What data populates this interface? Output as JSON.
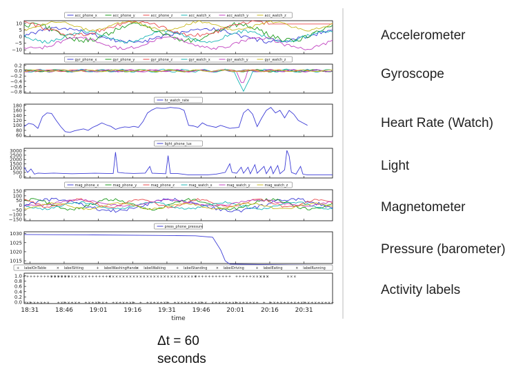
{
  "side_labels": [
    "Accelerometer",
    "Gyroscope",
    "Heart Rate (Watch)",
    "Light",
    "Magnetometer",
    "Pressure (barometer)",
    "Activity labels"
  ],
  "caption": {
    "line1": "Δt = 60",
    "line2": "seconds"
  },
  "chart_data": [
    {
      "type": "line",
      "panel": "accelerometer",
      "yticks": [
        "10",
        "5",
        "0",
        "−5",
        "−10"
      ],
      "ylim": [
        -13,
        12
      ],
      "series": [
        {
          "name": "acc_phone_x",
          "color": "#3b3bd6",
          "level": 1,
          "amp": 5,
          "freq": 0.05
        },
        {
          "name": "acc_phone_y",
          "color": "#1a9a1a",
          "level": 3,
          "amp": 6,
          "freq": 0.07
        },
        {
          "name": "acc_phone_z",
          "color": "#e8474a",
          "level": 6,
          "amp": 5,
          "freq": 0.06
        },
        {
          "name": "acc_watch_x",
          "color": "#18b5b5",
          "level": 0,
          "amp": 4,
          "freq": 0.09
        },
        {
          "name": "acc_watch_y",
          "color": "#c040c0",
          "level": -5,
          "amp": 4,
          "freq": 0.08
        },
        {
          "name": "acc_watch_z",
          "color": "#c8b820",
          "level": 8,
          "amp": 3,
          "freq": 0.1
        }
      ]
    },
    {
      "type": "line",
      "panel": "gyroscope",
      "yticks": [
        "0.2",
        "0.0",
        "−0.2",
        "−0.4",
        "−0.6",
        "−0.8"
      ],
      "ylim": [
        -0.85,
        0.25
      ],
      "series": [
        {
          "name": "gyr_phone_x",
          "color": "#3b3bd6",
          "level": 0,
          "amp": 0.03,
          "freq": 0.3
        },
        {
          "name": "gyr_phone_y",
          "color": "#1a9a1a",
          "level": 0,
          "amp": 0.04,
          "freq": 0.25
        },
        {
          "name": "gyr_phone_z",
          "color": "#e8474a",
          "level": 0,
          "amp": 0.03,
          "freq": 0.28
        },
        {
          "name": "gyr_watch_x",
          "color": "#18b5b5",
          "level": 0,
          "amp": 0.05,
          "freq": 0.35
        },
        {
          "name": "gyr_watch_y",
          "color": "#c040c0",
          "level": 0,
          "amp": 0.04,
          "freq": 0.31
        },
        {
          "name": "gyr_watch_z",
          "color": "#c8b820",
          "level": 0,
          "amp": 0.03,
          "freq": 0.27
        }
      ]
    },
    {
      "type": "line",
      "panel": "heart_rate",
      "yticks": [
        "180",
        "160",
        "140",
        "120",
        "100",
        "80",
        "60"
      ],
      "ylim": [
        55,
        185
      ],
      "series": [
        {
          "name": "hr_watch_rate",
          "color": "#3b3bd6",
          "points": [
            [
              0,
              95
            ],
            [
              4,
              108
            ],
            [
              8,
              104
            ],
            [
              12,
              88
            ],
            [
              16,
              135
            ],
            [
              20,
              150
            ],
            [
              24,
              148
            ],
            [
              28,
              120
            ],
            [
              32,
              95
            ],
            [
              36,
              75
            ],
            [
              40,
              72
            ],
            [
              44,
              78
            ],
            [
              48,
              82
            ],
            [
              52,
              86
            ],
            [
              56,
              80
            ],
            [
              60,
              92
            ],
            [
              64,
              100
            ],
            [
              68,
              110
            ],
            [
              72,
              102
            ],
            [
              76,
              96
            ],
            [
              80,
              84
            ],
            [
              84,
              90
            ],
            [
              88,
              94
            ],
            [
              92,
              92
            ],
            [
              96,
              96
            ],
            [
              100,
              92
            ],
            [
              104,
              115
            ],
            [
              108,
              150
            ],
            [
              112,
              162
            ],
            [
              116,
              170
            ],
            [
              120,
              168
            ],
            [
              124,
              168
            ],
            [
              128,
              172
            ],
            [
              132,
              170
            ],
            [
              136,
              168
            ],
            [
              140,
              160
            ],
            [
              144,
              100
            ],
            [
              148,
              98
            ],
            [
              152,
              92
            ],
            [
              156,
              110
            ],
            [
              160,
              100
            ],
            [
              164,
              96
            ],
            [
              168,
              92
            ],
            [
              172,
              100
            ],
            [
              176,
              94
            ],
            [
              180,
              88
            ],
            [
              184,
              90
            ],
            [
              188,
              92
            ],
            [
              192,
              150
            ],
            [
              196,
              165
            ],
            [
              200,
              145
            ],
            [
              204,
              95
            ],
            [
              208,
              130
            ],
            [
              212,
              160
            ],
            [
              216,
              172
            ],
            [
              220,
              150
            ],
            [
              224,
              160
            ],
            [
              228,
              130
            ],
            [
              232,
              160
            ],
            [
              236,
              145
            ],
            [
              240,
              120
            ],
            [
              244,
              110
            ],
            [
              248,
              100
            ]
          ]
        }
      ]
    },
    {
      "type": "line",
      "panel": "light",
      "yticks": [
        "3000",
        "2500",
        "2000",
        "1500",
        "1000",
        "500",
        "0"
      ],
      "ylim": [
        -150,
        3300
      ],
      "series": [
        {
          "name": "light_phone_lux",
          "color": "#3b3bd6",
          "points": [
            [
              0,
              1100
            ],
            [
              3,
              500
            ],
            [
              6,
              900
            ],
            [
              9,
              300
            ],
            [
              12,
              420
            ],
            [
              18,
              380
            ],
            [
              26,
              420
            ],
            [
              34,
              380
            ],
            [
              42,
              350
            ],
            [
              52,
              380
            ],
            [
              62,
              400
            ],
            [
              72,
              380
            ],
            [
              78,
              380
            ],
            [
              80,
              2850
            ],
            [
              82,
              500
            ],
            [
              88,
              420
            ],
            [
              96,
              380
            ],
            [
              106,
              420
            ],
            [
              110,
              1200
            ],
            [
              112,
              400
            ],
            [
              118,
              380
            ],
            [
              124,
              350
            ],
            [
              126,
              2450
            ],
            [
              128,
              380
            ],
            [
              134,
              380
            ],
            [
              144,
              200
            ],
            [
              152,
              200
            ],
            [
              160,
              200
            ],
            [
              168,
              300
            ],
            [
              176,
              500
            ],
            [
              180,
              1500
            ],
            [
              182,
              500
            ],
            [
              186,
              400
            ],
            [
              190,
              1100
            ],
            [
              192,
              400
            ],
            [
              196,
              1100
            ],
            [
              198,
              350
            ],
            [
              202,
              1400
            ],
            [
              204,
              400
            ],
            [
              210,
              1200
            ],
            [
              212,
              350
            ],
            [
              216,
              1200
            ],
            [
              218,
              350
            ],
            [
              222,
              1300
            ],
            [
              224,
              350
            ],
            [
              228,
              800
            ],
            [
              230,
              3050
            ],
            [
              232,
              2400
            ],
            [
              234,
              500
            ],
            [
              238,
              300
            ],
            [
              242,
              1200
            ],
            [
              244,
              300
            ],
            [
              248,
              200
            ],
            [
              254,
              200
            ],
            [
              260,
              200
            ],
            [
              266,
              200
            ],
            [
              270,
              200
            ]
          ]
        }
      ]
    },
    {
      "type": "line",
      "panel": "magnetometer",
      "yticks": [
        "150",
        "100",
        "50",
        "0",
        "−50",
        "−100",
        "−150"
      ],
      "ylim": [
        -165,
        165
      ],
      "series": [
        {
          "name": "mag_phone_x",
          "color": "#3b3bd6",
          "level": 0,
          "amp": 60,
          "freq": 0.06
        },
        {
          "name": "mag_phone_y",
          "color": "#1a9a1a",
          "level": 10,
          "amp": 50,
          "freq": 0.09
        },
        {
          "name": "mag_phone_z",
          "color": "#e8474a",
          "level": 20,
          "amp": 40,
          "freq": 0.12
        },
        {
          "name": "mag_watch_x",
          "color": "#18b5b5",
          "level": -5,
          "amp": 35,
          "freq": 0.1
        },
        {
          "name": "mag_watch_y",
          "color": "#c040c0",
          "level": 25,
          "amp": 30,
          "freq": 0.08
        },
        {
          "name": "mag_watch_z",
          "color": "#c8b820",
          "level": -10,
          "amp": 30,
          "freq": 0.11
        }
      ]
    },
    {
      "type": "line",
      "panel": "pressure",
      "yticks": [
        "1030",
        "1025",
        "1020",
        "1015"
      ],
      "ylim": [
        1013.5,
        1031
      ],
      "series": [
        {
          "name": "press_phone_pressure",
          "color": "#3b3bd6",
          "points": [
            [
              0,
              1029.5
            ],
            [
              60,
              1029.3
            ],
            [
              120,
              1029.0
            ],
            [
              150,
              1028.8
            ],
            [
              165,
              1028.0
            ],
            [
              172,
              1021
            ],
            [
              176,
              1015
            ],
            [
              180,
              1013.2
            ],
            [
              190,
              1013.1
            ],
            [
              210,
              1012.9
            ],
            [
              240,
              1012.7
            ],
            [
              270,
              1012.5
            ]
          ]
        }
      ]
    },
    {
      "type": "scatter",
      "panel": "activity_labels",
      "yticks": [
        "1.0",
        "0.8",
        "0.6",
        "0.4",
        "0.2",
        "0.0"
      ],
      "ylim": [
        -0.05,
        1.1
      ],
      "xlabel": "time",
      "xticks": [
        "18:31",
        "18:46",
        "19:01",
        "19:16",
        "19:31",
        "19:46",
        "20:01",
        "20:16",
        "20:31"
      ],
      "series": [
        {
          "name": "labelOnTable",
          "color": "#3b3bd6",
          "marker": "+",
          "ranges": [
            [
              0,
              40
            ],
            [
              150,
              160
            ]
          ]
        },
        {
          "name": "labelSitting",
          "color": "#1a9a1a",
          "marker": "x",
          "ranges": [
            [
              22,
              55
            ],
            [
              75,
              100
            ]
          ]
        },
        {
          "name": "labelWashingHands",
          "color": "#e8474a",
          "marker": "+",
          "ranges": [
            [
              55,
              75
            ]
          ]
        },
        {
          "name": "labelWalking",
          "color": "#18b5b5",
          "marker": "x",
          "ranges": [
            [
              100,
              140
            ],
            [
              230,
              238
            ]
          ]
        },
        {
          "name": "labelStanding",
          "color": "#c040c0",
          "marker": "+",
          "ranges": [
            [
              185,
              200
            ]
          ]
        },
        {
          "name": "labelDriving",
          "color": "#c8b820",
          "marker": "x",
          "ranges": [
            [
              140,
              150
            ],
            [
              205,
              215
            ]
          ]
        },
        {
          "name": "labelEating",
          "color": "#333333",
          "marker": "+",
          "ranges": [
            [
              160,
              180
            ]
          ]
        },
        {
          "name": "labelRunning",
          "color": "#4455cc",
          "marker": "x",
          "ranges": [
            [
              200,
              215
            ]
          ]
        }
      ]
    }
  ]
}
